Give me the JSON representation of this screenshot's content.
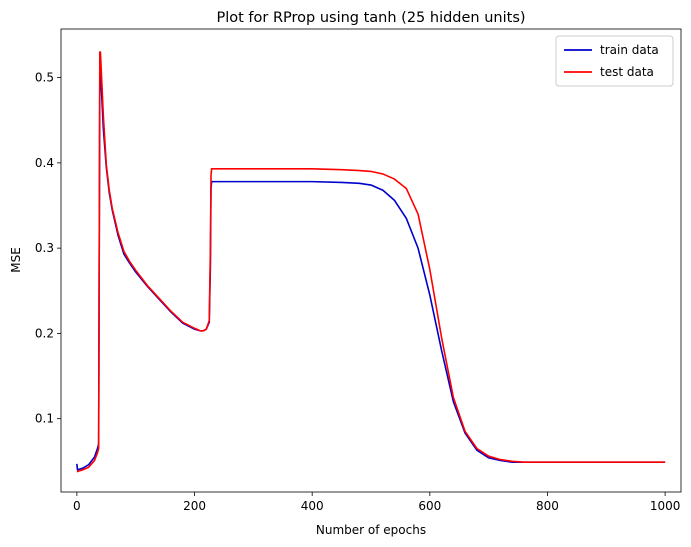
{
  "chart_data": {
    "type": "line",
    "title": "Plot for RProp using tanh (25 hidden units)",
    "xlabel": "Number of epochs",
    "ylabel": "MSE",
    "xlim": [
      -27,
      1027
    ],
    "ylim": [
      0.014,
      0.557
    ],
    "xticks": [
      0,
      200,
      400,
      600,
      800,
      1000
    ],
    "yticks": [
      0.1,
      0.2,
      0.3,
      0.4,
      0.5
    ],
    "grid": false,
    "legend_position": "top-right",
    "series": [
      {
        "name": "train data",
        "color": "#0000cc",
        "x": [
          0,
          1,
          5,
          10,
          20,
          30,
          35,
          37,
          38,
          39,
          40,
          45,
          50,
          55,
          60,
          70,
          80,
          90,
          100,
          120,
          140,
          160,
          180,
          200,
          210,
          215,
          220,
          225,
          227,
          228,
          229,
          230,
          250,
          300,
          350,
          400,
          450,
          480,
          500,
          520,
          540,
          560,
          580,
          600,
          620,
          640,
          660,
          680,
          700,
          720,
          740,
          760,
          800,
          850,
          900,
          950,
          1000
        ],
        "y": [
          0.047,
          0.04,
          0.041,
          0.042,
          0.046,
          0.055,
          0.065,
          0.07,
          0.3,
          0.5,
          0.51,
          0.44,
          0.395,
          0.365,
          0.345,
          0.315,
          0.293,
          0.282,
          0.272,
          0.255,
          0.24,
          0.225,
          0.212,
          0.205,
          0.203,
          0.203,
          0.205,
          0.213,
          0.28,
          0.37,
          0.378,
          0.378,
          0.378,
          0.378,
          0.378,
          0.378,
          0.377,
          0.376,
          0.374,
          0.368,
          0.356,
          0.335,
          0.3,
          0.245,
          0.18,
          0.12,
          0.083,
          0.063,
          0.054,
          0.051,
          0.049,
          0.049,
          0.049,
          0.049,
          0.049,
          0.049,
          0.049
        ]
      },
      {
        "name": "test data",
        "color": "#ff0000",
        "x": [
          0,
          1,
          5,
          10,
          20,
          30,
          35,
          37,
          38,
          39,
          40,
          45,
          50,
          55,
          60,
          70,
          80,
          90,
          100,
          120,
          140,
          160,
          180,
          200,
          210,
          215,
          220,
          225,
          227,
          228,
          229,
          230,
          250,
          300,
          350,
          400,
          450,
          480,
          500,
          520,
          540,
          560,
          580,
          600,
          620,
          640,
          660,
          680,
          700,
          720,
          740,
          760,
          800,
          850,
          900,
          950,
          1000
        ],
        "y": [
          0.038,
          0.038,
          0.039,
          0.04,
          0.043,
          0.051,
          0.06,
          0.065,
          0.3,
          0.53,
          0.53,
          0.455,
          0.398,
          0.368,
          0.347,
          0.318,
          0.296,
          0.284,
          0.274,
          0.256,
          0.241,
          0.226,
          0.213,
          0.206,
          0.203,
          0.203,
          0.205,
          0.215,
          0.3,
          0.385,
          0.393,
          0.393,
          0.393,
          0.393,
          0.393,
          0.393,
          0.392,
          0.391,
          0.39,
          0.387,
          0.381,
          0.37,
          0.34,
          0.275,
          0.195,
          0.125,
          0.085,
          0.065,
          0.056,
          0.052,
          0.05,
          0.049,
          0.049,
          0.049,
          0.049,
          0.049,
          0.049
        ]
      }
    ]
  }
}
